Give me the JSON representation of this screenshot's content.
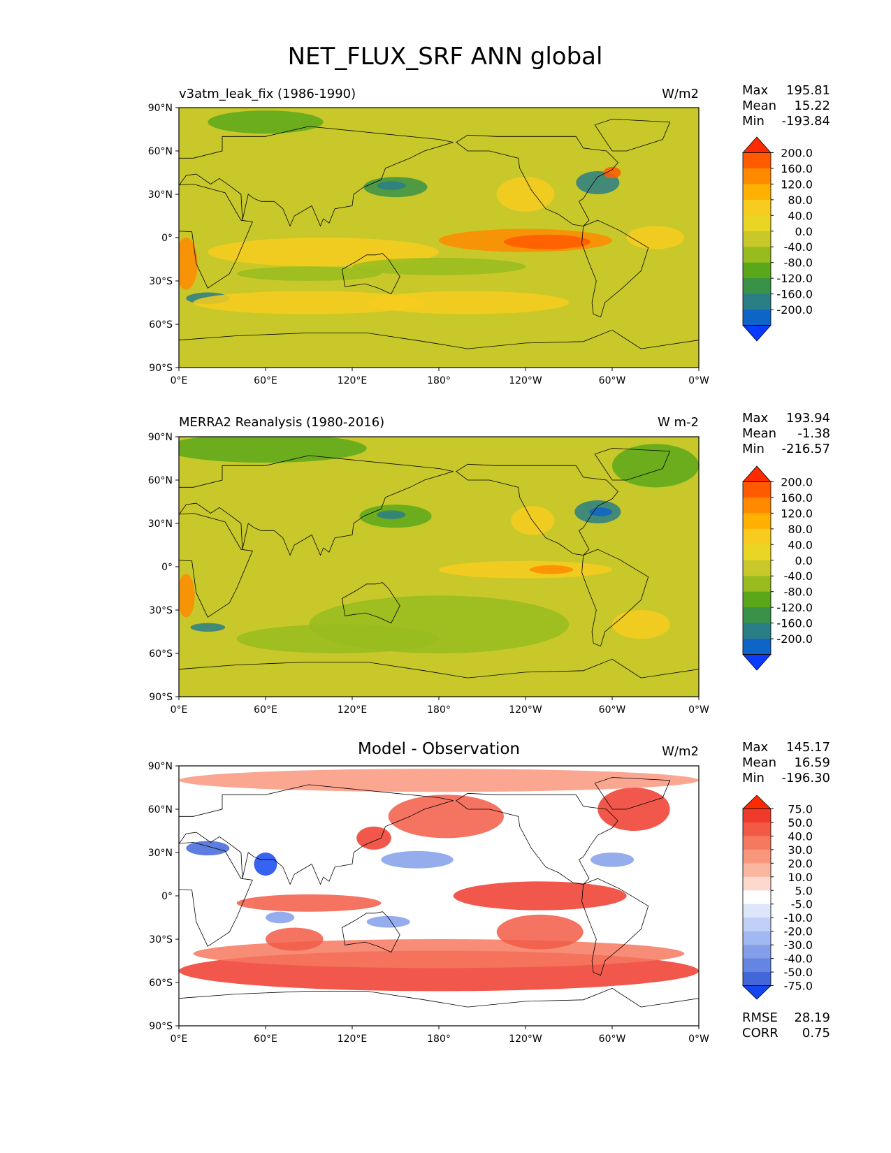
{
  "figure_title": "NET_FLUX_SRF ANN global",
  "lat_ticks": [
    "90°N",
    "60°N",
    "30°N",
    "0°",
    "30°S",
    "60°S",
    "90°S"
  ],
  "lon_ticks": [
    "0°E",
    "60°E",
    "120°E",
    "180°",
    "120°W",
    "60°W",
    "0°W"
  ],
  "chart_data": [
    {
      "type": "heatmap",
      "title": "v3atm_leak_fix (1986-1990)",
      "units": "W/m2",
      "stats": {
        "max_label": "Max",
        "max": "195.81",
        "mean_label": "Mean",
        "mean": "15.22",
        "min_label": "Min",
        "min": "-193.84"
      },
      "colorbar_levels": [
        "200.0",
        "160.0",
        "120.0",
        "80.0",
        "40.0",
        "0.0",
        "-40.0",
        "-80.0",
        "-120.0",
        "-160.0",
        "-200.0"
      ],
      "colorbar_colors": [
        "#ff2a00",
        "#ff5a00",
        "#ff8a00",
        "#ffb000",
        "#f7cc1e",
        "#e9d624",
        "#c8c82a",
        "#98bc1e",
        "#5aa81a",
        "#3a9248",
        "#2a7e86",
        "#0f64c8",
        "#0a3cff"
      ],
      "x_range": [
        0,
        360
      ],
      "y_range": [
        -90,
        90
      ]
    },
    {
      "type": "heatmap",
      "title": "MERRA2 Reanalysis (1980-2016)",
      "units": "W m-2",
      "stats": {
        "max_label": "Max",
        "max": "193.94",
        "mean_label": "Mean",
        "mean": "-1.38",
        "min_label": "Min",
        "min": "-216.57"
      },
      "colorbar_levels": [
        "200.0",
        "160.0",
        "120.0",
        "80.0",
        "40.0",
        "0.0",
        "-40.0",
        "-80.0",
        "-120.0",
        "-160.0",
        "-200.0"
      ],
      "colorbar_colors": [
        "#ff2a00",
        "#ff5a00",
        "#ff8a00",
        "#ffb000",
        "#f7cc1e",
        "#e9d624",
        "#c8c82a",
        "#98bc1e",
        "#5aa81a",
        "#3a9248",
        "#2a7e86",
        "#0f64c8",
        "#0a3cff"
      ],
      "x_range": [
        0,
        360
      ],
      "y_range": [
        -90,
        90
      ]
    },
    {
      "type": "heatmap",
      "title": "Model - Observation",
      "units": "W/m2",
      "stats": {
        "max_label": "Max",
        "max": "145.17",
        "mean_label": "Mean",
        "mean": "16.59",
        "min_label": "Min",
        "min": "-196.30"
      },
      "colorbar_levels": [
        "75.0",
        "50.0",
        "40.0",
        "30.0",
        "20.0",
        "10.0",
        "5.0",
        "-5.0",
        "-10.0",
        "-20.0",
        "-30.0",
        "-40.0",
        "-50.0",
        "-75.0"
      ],
      "colorbar_colors": [
        "#ff2a00",
        "#ef3b2c",
        "#f25a45",
        "#f6785f",
        "#f9977d",
        "#fbb6a0",
        "#fdd8cc",
        "#ffffff",
        "#dde6fb",
        "#c0d0f7",
        "#a2b8f1",
        "#849fea",
        "#6585e2",
        "#4267d9",
        "#1446f0"
      ],
      "extra_stats": {
        "rmse_label": "RMSE",
        "rmse": "28.19",
        "corr_label": "CORR",
        "corr": "0.75"
      },
      "x_range": [
        0,
        360
      ],
      "y_range": [
        -90,
        90
      ]
    }
  ]
}
